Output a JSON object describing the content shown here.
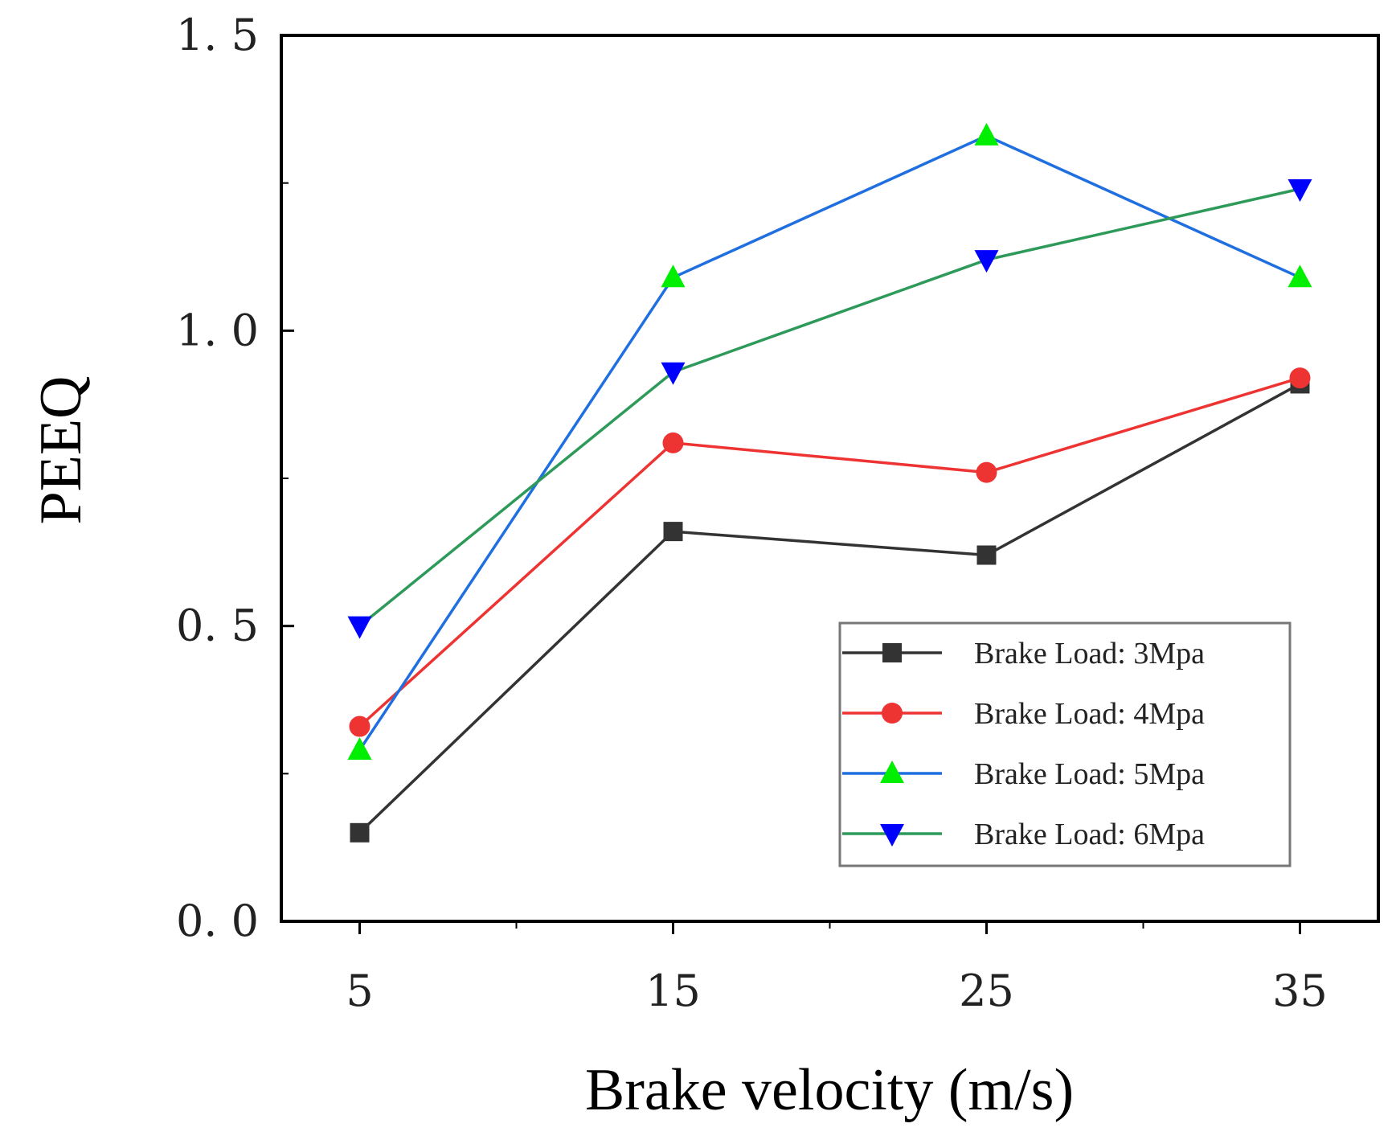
{
  "chart_data": {
    "type": "line",
    "title": "",
    "xlabel": "Brake velocity (m/s)",
    "ylabel": "PEEQ",
    "x": [
      5,
      15,
      25,
      35
    ],
    "xlim": [
      2.5,
      37.5
    ],
    "ylim": [
      0,
      1.5
    ],
    "x_ticks": [
      5,
      15,
      25,
      35
    ],
    "x_tick_labels": [
      "5",
      "15",
      "25",
      "35"
    ],
    "y_ticks": [
      0,
      0.5,
      1.0,
      1.5
    ],
    "y_tick_labels": [
      "0. 0",
      "0. 5",
      "1. 0",
      "1. 5"
    ],
    "grid": false,
    "legend_position": "bottom-right",
    "series": [
      {
        "name": "Brake Load: 3Mpa",
        "values": [
          0.15,
          0.66,
          0.62,
          0.91
        ],
        "color": "#333333",
        "marker": "square"
      },
      {
        "name": "Brake Load: 4Mpa",
        "values": [
          0.33,
          0.81,
          0.76,
          0.92
        ],
        "color": "#ee3333",
        "marker": "circle"
      },
      {
        "name": "Brake Load: 5Mpa",
        "values": [
          0.29,
          1.09,
          1.33,
          1.09
        ],
        "color": "#1f6fe0",
        "marker": "triangle-up",
        "marker_color": "#00ee00"
      },
      {
        "name": "Brake Load: 6Mpa",
        "values": [
          0.5,
          0.93,
          1.12,
          1.24
        ],
        "color": "#2e9a5a",
        "marker": "triangle-down",
        "marker_color": "#0000ff"
      }
    ]
  }
}
